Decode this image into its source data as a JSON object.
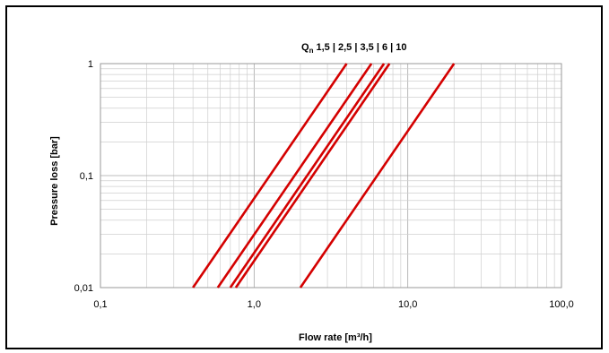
{
  "chart_data": {
    "type": "line",
    "title": {
      "prefix": "Q",
      "subscript": "n",
      "rest": " 1,5 | 2,5 | 3,5 | 6 | 10"
    },
    "xlabel": "Flow rate [m³/h]",
    "ylabel": "Pressure loss [bar]",
    "x_scale": "log",
    "y_scale": "log",
    "xlim": [
      0.1,
      100
    ],
    "ylim": [
      0.01,
      1
    ],
    "x_ticks": [
      {
        "value": 0.1,
        "label": "0,1"
      },
      {
        "value": 1,
        "label": "1,0"
      },
      {
        "value": 10,
        "label": "10,0"
      },
      {
        "value": 100,
        "label": "100,0"
      }
    ],
    "y_ticks": [
      {
        "value": 0.01,
        "label": "0,01"
      },
      {
        "value": 0.1,
        "label": "0,1"
      },
      {
        "value": 1,
        "label": "1"
      }
    ],
    "grid": true,
    "series": [
      {
        "name": "1,5",
        "x": [
          0.4,
          4.0
        ],
        "y": [
          0.01,
          1
        ]
      },
      {
        "name": "2,5",
        "x": [
          0.58,
          5.8
        ],
        "y": [
          0.01,
          1
        ]
      },
      {
        "name": "3,5",
        "x": [
          0.7,
          7.0
        ],
        "y": [
          0.01,
          1
        ]
      },
      {
        "name": "6",
        "x": [
          0.76,
          7.6
        ],
        "y": [
          0.01,
          1
        ]
      },
      {
        "name": "10",
        "x": [
          2.0,
          20.0
        ],
        "y": [
          0.01,
          1
        ]
      }
    ],
    "colors": {
      "series": "#d40000"
    }
  }
}
